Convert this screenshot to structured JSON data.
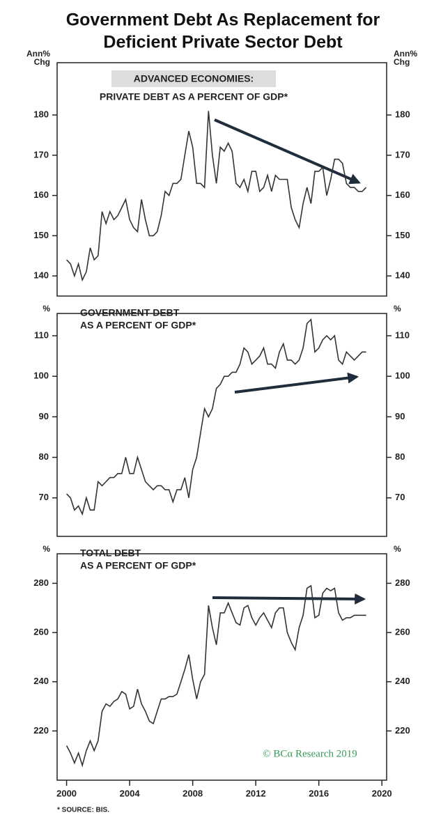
{
  "title": [
    "Government Debt As Replacement for",
    "Deficient Private Sector Debt"
  ],
  "source": "* SOURCE: BIS.",
  "logo": "© BCα Research 2019",
  "chart_data": [
    {
      "type": "line",
      "title": [
        "ADVANCED ECONOMIES:",
        "PRIVATE DEBT AS A PERCENT OF GDP*"
      ],
      "ylabel": [
        "Ann%",
        "Chg"
      ],
      "xlim": [
        1999.4,
        2020.3
      ],
      "ylim": [
        135,
        193
      ],
      "yticks": [
        140,
        150,
        160,
        170,
        180
      ],
      "x": [
        2000,
        2000.25,
        2000.5,
        2000.75,
        2001,
        2001.25,
        2001.5,
        2001.75,
        2002,
        2002.25,
        2002.5,
        2002.75,
        2003,
        2003.25,
        2003.5,
        2003.75,
        2004,
        2004.25,
        2004.5,
        2004.75,
        2005,
        2005.25,
        2005.5,
        2005.75,
        2006,
        2006.25,
        2006.5,
        2006.75,
        2007,
        2007.25,
        2007.5,
        2007.75,
        2008,
        2008.25,
        2008.5,
        2008.75,
        2009,
        2009.25,
        2009.5,
        2009.75,
        2010,
        2010.25,
        2010.5,
        2010.75,
        2011,
        2011.25,
        2011.5,
        2011.75,
        2012,
        2012.25,
        2012.5,
        2012.75,
        2013,
        2013.25,
        2013.5,
        2013.75,
        2014,
        2014.25,
        2014.5,
        2014.75,
        2015,
        2015.25,
        2015.5,
        2015.75,
        2016,
        2016.25,
        2016.5,
        2016.75,
        2017,
        2017.25,
        2017.5,
        2017.75,
        2018,
        2018.25,
        2018.5,
        2018.75,
        2019
      ],
      "series": [
        {
          "name": "Private debt",
          "color": "#333333",
          "values": [
            144,
            143,
            140,
            143,
            139,
            141,
            147,
            144,
            145,
            156,
            153,
            156,
            154,
            155,
            157,
            159,
            154,
            152,
            151,
            159,
            154,
            150,
            150,
            151,
            155,
            161,
            160,
            163,
            163,
            164,
            170,
            176,
            172,
            163,
            163,
            162,
            181,
            170,
            163,
            172,
            171,
            173,
            171,
            163,
            162,
            164,
            161,
            166,
            166,
            161,
            162,
            165,
            161,
            165,
            164,
            164,
            164,
            157,
            154,
            152,
            158,
            162,
            158,
            166,
            166,
            167,
            160,
            164,
            169,
            169,
            168,
            163,
            162,
            162,
            161,
            161,
            162
          ]
        }
      ]
    },
    {
      "type": "line",
      "title": [
        "GOVERNMENT DEBT",
        "AS A PERCENT OF GDP*"
      ],
      "ylabel": [
        "%"
      ],
      "xlim": [
        1999.4,
        2020.3
      ],
      "ylim": [
        60.5,
        115.5
      ],
      "yticks": [
        70,
        80,
        90,
        100,
        110
      ],
      "x": [
        2000,
        2000.25,
        2000.5,
        2000.75,
        2001,
        2001.25,
        2001.5,
        2001.75,
        2002,
        2002.25,
        2002.5,
        2002.75,
        2003,
        2003.25,
        2003.5,
        2003.75,
        2004,
        2004.25,
        2004.5,
        2004.75,
        2005,
        2005.25,
        2005.5,
        2005.75,
        2006,
        2006.25,
        2006.5,
        2006.75,
        2007,
        2007.25,
        2007.5,
        2007.75,
        2008,
        2008.25,
        2008.5,
        2008.75,
        2009,
        2009.25,
        2009.5,
        2009.75,
        2010,
        2010.25,
        2010.5,
        2010.75,
        2011,
        2011.25,
        2011.5,
        2011.75,
        2012,
        2012.25,
        2012.5,
        2012.75,
        2013,
        2013.25,
        2013.5,
        2013.75,
        2014,
        2014.25,
        2014.5,
        2014.75,
        2015,
        2015.25,
        2015.5,
        2015.75,
        2016,
        2016.25,
        2016.5,
        2016.75,
        2017,
        2017.25,
        2017.5,
        2017.75,
        2018,
        2018.25,
        2018.5,
        2018.75,
        2019
      ],
      "series": [
        {
          "name": "Government debt",
          "color": "#333333",
          "values": [
            71,
            70,
            67,
            68,
            66,
            70,
            67,
            67,
            74,
            73,
            74,
            75,
            75,
            76,
            76,
            80,
            76,
            76,
            80,
            77,
            74,
            73,
            72,
            73,
            73,
            72,
            72,
            69,
            72,
            72,
            75,
            70,
            77,
            80,
            86,
            92,
            90,
            92,
            97,
            98,
            100,
            100,
            101,
            101,
            103,
            107,
            106,
            103,
            104,
            105,
            107,
            103,
            103,
            102,
            106,
            108,
            104,
            104,
            103,
            104,
            107,
            113,
            114,
            106,
            107,
            109,
            110,
            109,
            110,
            104,
            103,
            106,
            105,
            104,
            105,
            106,
            106
          ]
        }
      ]
    },
    {
      "type": "line",
      "title": [
        "TOTAL DEBT",
        "AS A PERCENT OF GDP*"
      ],
      "ylabel": [
        "%"
      ],
      "xlim": [
        1999.4,
        2020.3
      ],
      "ylim": [
        200,
        292
      ],
      "yticks": [
        220,
        240,
        260,
        280
      ],
      "xticks": [
        2000,
        2004,
        2008,
        2012,
        2016,
        2020
      ],
      "x": [
        2000,
        2000.25,
        2000.5,
        2000.75,
        2001,
        2001.25,
        2001.5,
        2001.75,
        2002,
        2002.25,
        2002.5,
        2002.75,
        2003,
        2003.25,
        2003.5,
        2003.75,
        2004,
        2004.25,
        2004.5,
        2004.75,
        2005,
        2005.25,
        2005.5,
        2005.75,
        2006,
        2006.25,
        2006.5,
        2006.75,
        2007,
        2007.25,
        2007.5,
        2007.75,
        2008,
        2008.25,
        2008.5,
        2008.75,
        2009,
        2009.25,
        2009.5,
        2009.75,
        2010,
        2010.25,
        2010.5,
        2010.75,
        2011,
        2011.25,
        2011.5,
        2011.75,
        2012,
        2012.25,
        2012.5,
        2012.75,
        2013,
        2013.25,
        2013.5,
        2013.75,
        2014,
        2014.25,
        2014.5,
        2014.75,
        2015,
        2015.25,
        2015.5,
        2015.75,
        2016,
        2016.25,
        2016.5,
        2016.75,
        2017,
        2017.25,
        2017.5,
        2017.75,
        2018,
        2018.25,
        2018.5,
        2018.75,
        2019
      ],
      "series": [
        {
          "name": "Total debt",
          "color": "#333333",
          "values": [
            214,
            211,
            207,
            211,
            206,
            212,
            216,
            212,
            216,
            228,
            231,
            230,
            232,
            233,
            236,
            235,
            229,
            230,
            237,
            231,
            228,
            224,
            223,
            228,
            233,
            233,
            234,
            234,
            235,
            240,
            245,
            251,
            241,
            233,
            240,
            243,
            271,
            262,
            255,
            268,
            268,
            272,
            268,
            264,
            263,
            270,
            271,
            266,
            263,
            266,
            268,
            265,
            262,
            268,
            270,
            270,
            260,
            256,
            253,
            262,
            267,
            278,
            279,
            266,
            267,
            276,
            278,
            277,
            278,
            268,
            265,
            266,
            266,
            267,
            267,
            267,
            267
          ]
        }
      ]
    }
  ]
}
